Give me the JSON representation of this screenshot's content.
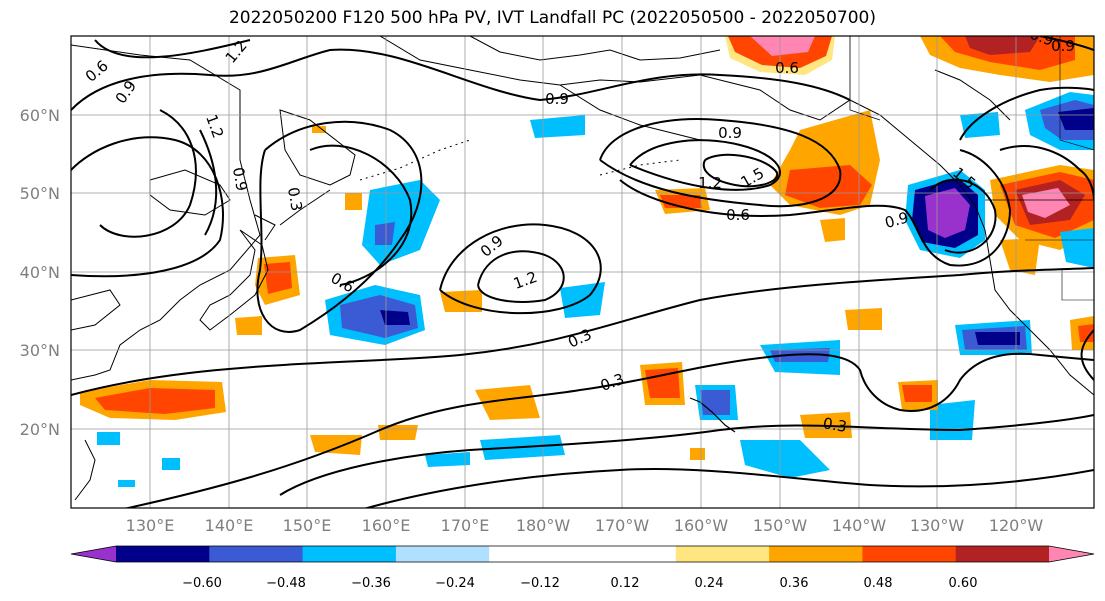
{
  "title": "2022050200 F120 500 hPa PV, IVT Landfall PC (2022050500 - 2022050700)",
  "lat_labels": [
    "60°N",
    "50°N",
    "40°N",
    "30°N",
    "20°N"
  ],
  "lon_labels": [
    "130°E",
    "140°E",
    "150°E",
    "160°E",
    "170°E",
    "180°W",
    "170°W",
    "160°W",
    "150°W",
    "140°W",
    "130°W",
    "120°W"
  ],
  "contour_labels": [
    "0.6",
    "0.9",
    "1.2",
    "1.2",
    "0.9",
    "0.3",
    "0.6",
    "0.9",
    "1.2",
    "0.9",
    "0.6",
    "0.9",
    "1.2",
    "1.5",
    "0.6",
    "0.9",
    "0.9",
    "0.3",
    "0.3",
    "0.3",
    "1.5",
    "0.9"
  ],
  "colorbar": {
    "colors": [
      "#9932cc",
      "#00008b",
      "#3a5bd4",
      "#00bfff",
      "#b0e0ff",
      "#ffffff",
      "#ffffff",
      "#ffe680",
      "#ffa500",
      "#ff4500",
      "#b22222",
      "#ff85b3"
    ],
    "tick_labels": [
      "−0.60",
      "−0.48",
      "−0.36",
      "−0.24",
      "−0.12",
      "0.12",
      "0.24",
      "0.36",
      "0.48",
      "0.60"
    ]
  }
}
